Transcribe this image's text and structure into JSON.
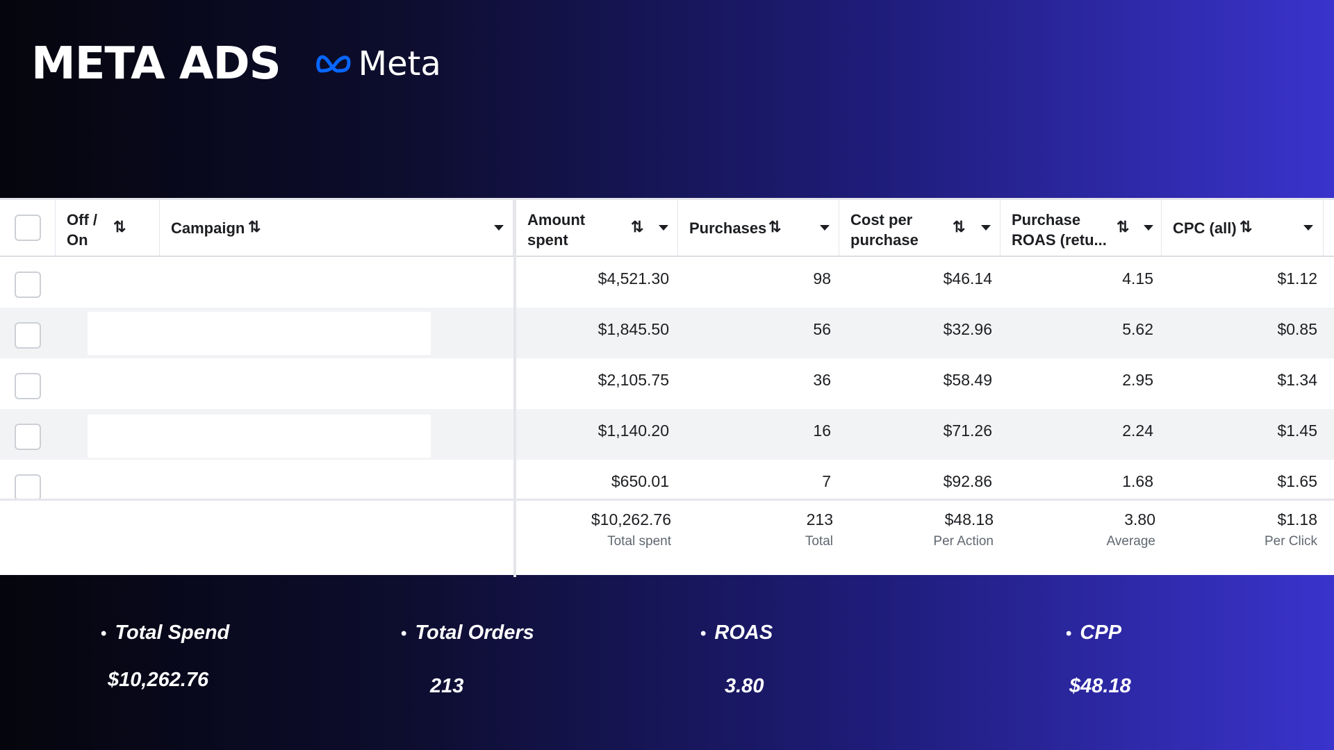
{
  "header": {
    "title": "META ADS",
    "logo_text": "Meta"
  },
  "table": {
    "columns": {
      "off_on": "Off /\nOn",
      "campaign": "Campaign",
      "amount_spent": "Amount\nspent",
      "purchases": "Purchases",
      "cost_per_purchase": "Cost per\npurchase",
      "roas": "Purchase\nROAS (retu...",
      "cpc": "CPC (all)"
    },
    "sort_glyph": "⇅",
    "rows": [
      {
        "amount": "$4,521.30",
        "purchases": "98",
        "cpp": "$46.14",
        "roas": "4.15",
        "cpc": "$1.12"
      },
      {
        "amount": "$1,845.50",
        "purchases": "56",
        "cpp": "$32.96",
        "roas": "5.62",
        "cpc": "$0.85"
      },
      {
        "amount": "$2,105.75",
        "purchases": "36",
        "cpp": "$58.49",
        "roas": "2.95",
        "cpc": "$1.34"
      },
      {
        "amount": "$1,140.20",
        "purchases": "16",
        "cpp": "$71.26",
        "roas": "2.24",
        "cpc": "$1.45"
      },
      {
        "amount": "$650.01",
        "purchases": "7",
        "cpp": "$92.86",
        "roas": "1.68",
        "cpc": "$1.65"
      }
    ],
    "totals": {
      "amount": {
        "value": "$10,262.76",
        "label": "Total spent"
      },
      "purchases": {
        "value": "213",
        "label": "Total"
      },
      "cpp": {
        "value": "$48.18",
        "label": "Per Action"
      },
      "roas": {
        "value": "3.80",
        "label": "Average"
      },
      "cpc": {
        "value": "$1.18",
        "label": "Per Click"
      }
    }
  },
  "kpis": [
    {
      "label": "Total Spend",
      "value": "$10,262.76"
    },
    {
      "label": "Total Orders",
      "value": "213"
    },
    {
      "label": "ROAS",
      "value": "3.80"
    },
    {
      "label": "CPP",
      "value": "$48.18"
    }
  ],
  "colors": {
    "meta_blue": "#0866ff",
    "bg_dark": "#05050d",
    "bg_purple": "#3a33cc"
  },
  "icons": [
    "meta-infinity-icon",
    "sort-icon",
    "caret-down-icon",
    "checkbox-icon"
  ]
}
